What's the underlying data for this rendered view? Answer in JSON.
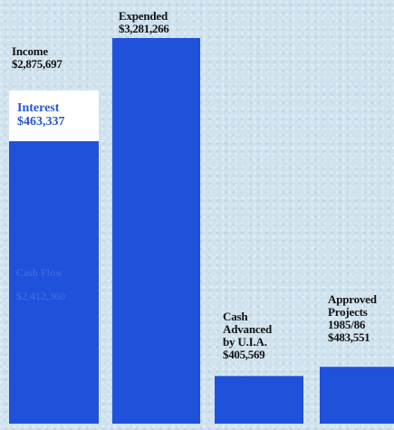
{
  "colors": {
    "bar": "#1f51db",
    "background": "#cfe2ee",
    "interest_box": "#ffffff",
    "interest_text": "#2357cf"
  },
  "chart_data": {
    "type": "bar",
    "ylim": [
      0,
      3400000
    ],
    "bars": [
      {
        "label_lines": [
          "Income"
        ],
        "value_label": "$2,875,697",
        "value": 2875697,
        "segments": [
          {
            "name": "Cash Flow",
            "value_label": "$2,412,360",
            "value": 2412360
          },
          {
            "name": "Interest",
            "value_label": "$463,337",
            "value": 463337
          }
        ]
      },
      {
        "label_lines": [
          "Expended"
        ],
        "value_label": "$3,281,266",
        "value": 3281266
      },
      {
        "label_lines": [
          "Cash",
          "Advanced",
          "by U.I.A."
        ],
        "value_label": "$405,569",
        "value": 405569
      },
      {
        "label_lines": [
          "Approved",
          "Projects",
          "1985/86"
        ],
        "value_label": "$483,551",
        "value": 483551
      }
    ]
  }
}
